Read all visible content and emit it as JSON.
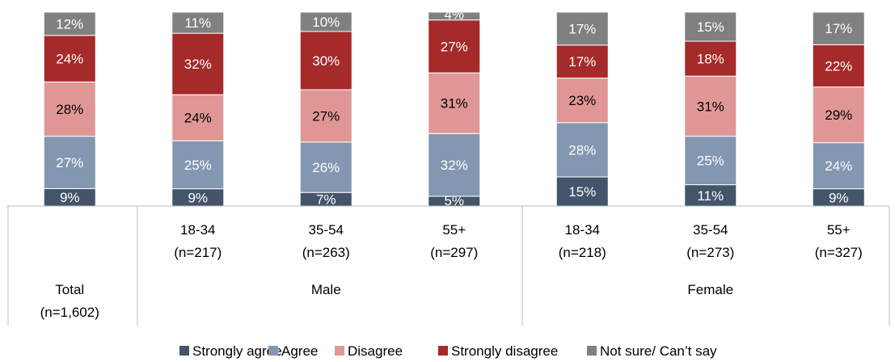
{
  "chart_data": {
    "type": "bar",
    "stacked": true,
    "groups": [
      {
        "columns": [
          0
        ],
        "label": ""
      },
      {
        "columns": [
          1,
          2,
          3
        ],
        "label": "Male"
      },
      {
        "columns": [
          4,
          5,
          6
        ],
        "label": "Female"
      }
    ],
    "columns": [
      {
        "label_top": "",
        "label_n": "",
        "label_bottom": "Total",
        "label_bottom_n": "(n=1,602)"
      },
      {
        "label_top": "18-34",
        "label_n": "(n=217)",
        "label_bottom": "",
        "label_bottom_n": ""
      },
      {
        "label_top": "35-54",
        "label_n": "(n=263)",
        "label_bottom": "",
        "label_bottom_n": ""
      },
      {
        "label_top": "55+",
        "label_n": "(n=297)",
        "label_bottom": "",
        "label_bottom_n": ""
      },
      {
        "label_top": "18-34",
        "label_n": "(n=218)",
        "label_bottom": "",
        "label_bottom_n": ""
      },
      {
        "label_top": "35-54",
        "label_n": "(n=273)",
        "label_bottom": "",
        "label_bottom_n": ""
      },
      {
        "label_top": "55+",
        "label_n": "(n=327)",
        "label_bottom": "",
        "label_bottom_n": ""
      }
    ],
    "series": [
      {
        "name": "Strongly agree",
        "color": "#44546a",
        "label_color": "#ffffff",
        "values": [
          9,
          9,
          7,
          5,
          15,
          11,
          9
        ]
      },
      {
        "name": "Agree",
        "color": "#8497b0",
        "label_color": "#ffffff",
        "values": [
          27,
          25,
          26,
          32,
          28,
          25,
          24
        ]
      },
      {
        "name": "Disagree",
        "color": "#e19696",
        "label_color": "#000000",
        "values": [
          28,
          24,
          27,
          31,
          23,
          31,
          29
        ]
      },
      {
        "name": "Strongly disagree",
        "color": "#a52a2a",
        "label_color": "#ffffff",
        "values": [
          24,
          32,
          30,
          27,
          17,
          18,
          22
        ]
      },
      {
        "name": "Not sure/ Can’t say",
        "color": "#808080",
        "label_color": "#ffffff",
        "values": [
          12,
          11,
          10,
          4,
          17,
          15,
          17
        ]
      }
    ],
    "value_suffix": "%",
    "legend_position": "bottom",
    "grid": false
  }
}
